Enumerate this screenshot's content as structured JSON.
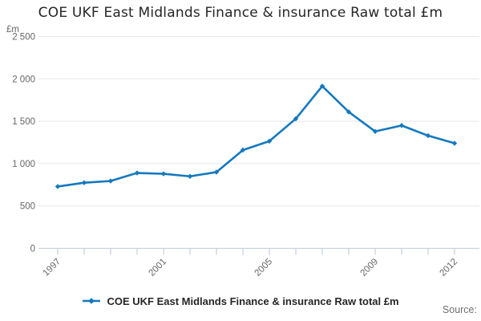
{
  "page": {
    "source_label": "Source:"
  },
  "chart_data": {
    "type": "line",
    "title": "COE UKF East Midlands Finance & insurance Raw total £m",
    "unit_label": "£m",
    "x": [
      1997,
      1998,
      1999,
      2000,
      2001,
      2002,
      2003,
      2004,
      2005,
      2006,
      2007,
      2008,
      2009,
      2010,
      2011,
      2012
    ],
    "series": [
      {
        "name": "COE UKF East Midlands Finance & insurance Raw total £m",
        "color": "#1579bf",
        "values": [
          730,
          775,
          795,
          890,
          880,
          850,
          900,
          1160,
          1265,
          1530,
          1915,
          1610,
          1380,
          1450,
          1330,
          1240
        ]
      }
    ],
    "ylim": [
      0,
      2500
    ],
    "y_ticks": [
      {
        "value": 0,
        "label": "0"
      },
      {
        "value": 500,
        "label": "500"
      },
      {
        "value": 1000,
        "label": "1 000"
      },
      {
        "value": 1500,
        "label": "1 500"
      },
      {
        "value": 2000,
        "label": "2 000"
      },
      {
        "value": 2500,
        "label": "2 500"
      }
    ],
    "x_tick_labels": [
      "1997",
      "2001",
      "2005",
      "2009",
      "2012"
    ],
    "grid": true,
    "legend_position": "bottom",
    "colors": {
      "grid": "#e6e6e6",
      "axis": "#c9d3e2",
      "tick_text": "#666666",
      "title_text": "#262626"
    }
  }
}
